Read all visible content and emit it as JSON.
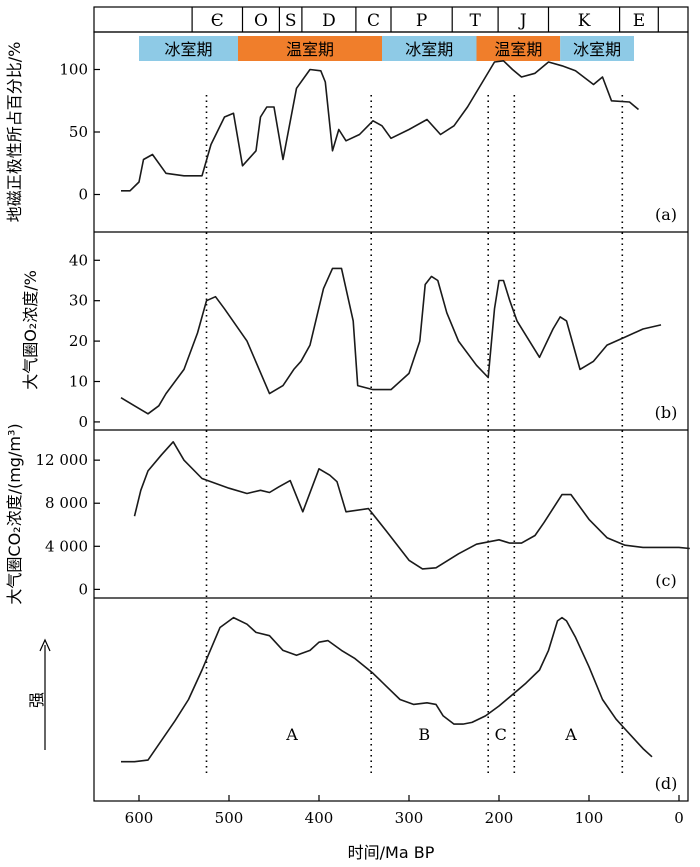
{
  "chart_data": {
    "type": "line",
    "xlabel": "时间/Ma BP",
    "x_ticks": [
      "600",
      "500",
      "400",
      "300",
      "200",
      "100",
      "0"
    ],
    "x_tick_values": [
      600,
      500,
      400,
      300,
      200,
      100,
      0
    ],
    "xlim": [
      650,
      -10
    ],
    "periods": [
      {
        "label": "Є",
        "start": 541,
        "end": 485
      },
      {
        "label": "O",
        "start": 485,
        "end": 444
      },
      {
        "label": "S",
        "start": 444,
        "end": 419
      },
      {
        "label": "D",
        "start": 419,
        "end": 359
      },
      {
        "label": "C",
        "start": 359,
        "end": 320
      },
      {
        "label": "P",
        "start": 320,
        "end": 252
      },
      {
        "label": "T",
        "start": 252,
        "end": 201
      },
      {
        "label": "J",
        "start": 201,
        "end": 145
      },
      {
        "label": "K",
        "start": 145,
        "end": 66
      },
      {
        "label": "E",
        "start": 66,
        "end": 23
      }
    ],
    "climate_bands": [
      {
        "label": "冰室期",
        "kind": "icehouse",
        "start": 600,
        "end": 490
      },
      {
        "label": "温室期",
        "kind": "greenhouse",
        "start": 490,
        "end": 330
      },
      {
        "label": "冰室期",
        "kind": "icehouse",
        "start": 330,
        "end": 225
      },
      {
        "label": "温室期",
        "kind": "greenhouse",
        "start": 225,
        "end": 132
      },
      {
        "label": "冰室期",
        "kind": "icehouse",
        "start": 132,
        "end": 50
      }
    ],
    "colors": {
      "icehouse": "#8ecae6",
      "greenhouse": "#f07e2b"
    },
    "dotted_lines": [
      525,
      342,
      212,
      183,
      63
    ],
    "panels": [
      {
        "id": "a",
        "panel_label": "(a)",
        "ylabel": "地磁正极性所占百分比/%",
        "yticks": [
          "0",
          "50",
          "100"
        ],
        "ytick_values": [
          0,
          50,
          100
        ],
        "ylim": [
          -30,
          130
        ],
        "x": [
          620,
          610,
          600,
          595,
          585,
          570,
          550,
          530,
          520,
          505,
          495,
          485,
          470,
          465,
          458,
          450,
          440,
          425,
          410,
          398,
          393,
          385,
          378,
          370,
          355,
          340,
          330,
          320,
          300,
          280,
          265,
          250,
          235,
          225,
          205,
          195,
          185,
          175,
          160,
          145,
          130,
          115,
          95,
          85,
          75,
          55,
          45
        ],
        "y": [
          3,
          3,
          10,
          28,
          32,
          17,
          15,
          15,
          40,
          62,
          65,
          23,
          35,
          62,
          70,
          70,
          28,
          85,
          100,
          99,
          90,
          35,
          52,
          43,
          48,
          59,
          55,
          45,
          52,
          60,
          48,
          55,
          70,
          82,
          106,
          107,
          100,
          94,
          97,
          106,
          103,
          99,
          88,
          94,
          75,
          74,
          68
        ]
      },
      {
        "id": "b",
        "panel_label": "(b)",
        "ylabel": "大气圈O₂浓度/%",
        "yticks": [
          "0",
          "10",
          "20",
          "30",
          "40"
        ],
        "ytick_values": [
          0,
          10,
          20,
          30,
          40
        ],
        "ylim": [
          -2,
          47
        ],
        "x": [
          620,
          605,
          590,
          578,
          570,
          550,
          535,
          525,
          515,
          505,
          480,
          455,
          440,
          428,
          420,
          410,
          395,
          385,
          375,
          362,
          357,
          340,
          320,
          300,
          288,
          282,
          275,
          268,
          258,
          245,
          225,
          212,
          205,
          200,
          195,
          188,
          180,
          155,
          140,
          132,
          125,
          110,
          95,
          80,
          60,
          40,
          20
        ],
        "y": [
          6,
          4,
          2,
          4,
          7,
          13,
          22,
          30,
          31,
          28,
          20,
          7,
          9,
          13,
          15,
          19,
          33,
          38,
          38,
          25,
          9,
          8,
          8,
          12,
          20,
          34,
          36,
          35,
          27,
          20,
          14,
          11,
          28,
          35,
          35,
          30,
          25,
          16,
          23,
          26,
          25,
          13,
          15,
          19,
          21,
          23,
          24
        ]
      },
      {
        "id": "c",
        "panel_label": "(c)",
        "ylabel": "大气圈CO₂浓度/(mg/m³)",
        "yticks": [
          "0",
          "4 000",
          "8 000",
          "12 000"
        ],
        "ytick_values": [
          0,
          4000,
          8000,
          12000
        ],
        "ylim": [
          -800,
          14800
        ],
        "x": [
          605,
          598,
          590,
          575,
          562,
          550,
          530,
          500,
          480,
          465,
          455,
          445,
          432,
          418,
          400,
          388,
          380,
          370,
          345,
          325,
          300,
          285,
          270,
          245,
          225,
          200,
          188,
          175,
          160,
          150,
          140,
          130,
          120,
          100,
          80,
          60,
          40,
          20,
          0,
          -12
        ],
        "y": [
          6800,
          9200,
          11000,
          12500,
          13700,
          12000,
          10300,
          9400,
          8900,
          9200,
          9000,
          9500,
          10100,
          7200,
          11200,
          10600,
          10000,
          7200,
          7500,
          5400,
          2700,
          1900,
          2000,
          3300,
          4200,
          4600,
          4300,
          4300,
          5000,
          6200,
          7500,
          8800,
          8800,
          6500,
          4800,
          4100,
          3900,
          3900,
          3900,
          3800
        ]
      },
      {
        "id": "d",
        "panel_label": "(d)",
        "ylabel": "强",
        "yticks": [],
        "ytick_values": [],
        "ylim": [
          -12,
          112
        ],
        "x": [
          620,
          605,
          590,
          575,
          560,
          545,
          530,
          510,
          495,
          480,
          470,
          455,
          440,
          425,
          410,
          400,
          390,
          375,
          360,
          340,
          325,
          310,
          295,
          280,
          270,
          262,
          250,
          240,
          230,
          215,
          200,
          185,
          170,
          155,
          145,
          135,
          130,
          125,
          115,
          100,
          85,
          70,
          60,
          50,
          40,
          30
        ],
        "y": [
          12,
          12,
          13,
          25,
          37,
          50,
          68,
          94,
          100,
          96,
          91,
          89,
          80,
          77,
          80,
          85,
          86,
          80,
          75,
          66,
          58,
          50,
          47,
          48,
          47,
          40,
          35,
          35,
          36,
          40,
          46,
          53,
          60,
          68,
          80,
          98,
          100,
          98,
          88,
          70,
          50,
          38,
          32,
          26,
          20,
          15
        ]
      }
    ],
    "region_labels": [
      {
        "label": "A",
        "x": 430
      },
      {
        "label": "B",
        "x": 283
      },
      {
        "label": "C",
        "x": 198
      },
      {
        "label": "A",
        "x": 120
      }
    ]
  }
}
